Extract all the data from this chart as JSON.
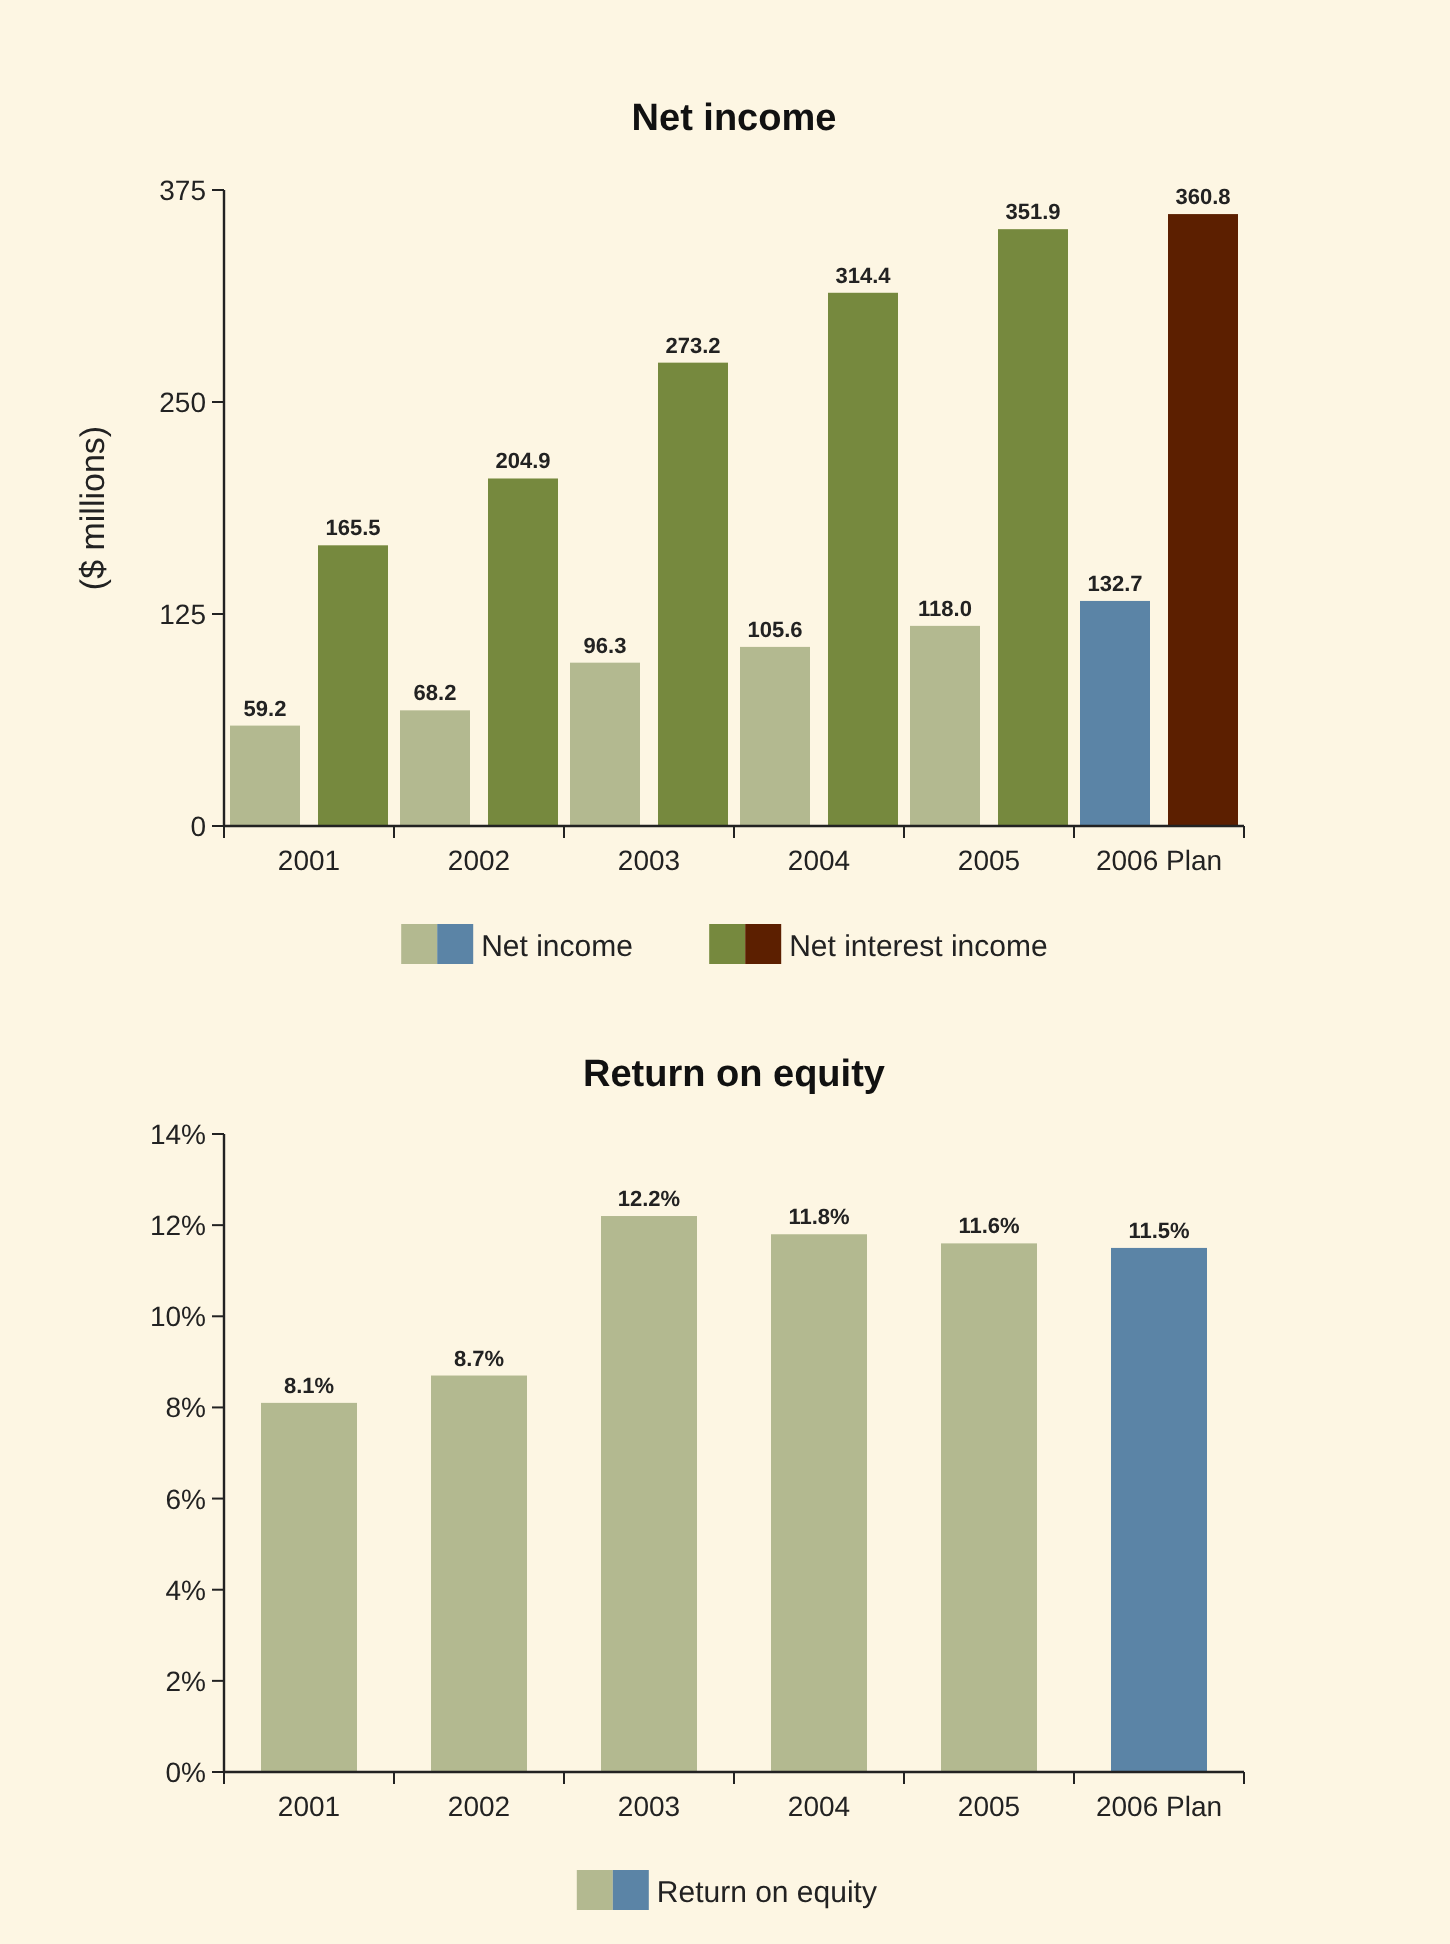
{
  "chart_data": [
    {
      "type": "bar",
      "title": "Net income",
      "ylabel": "($ millions)",
      "categories": [
        "2001",
        "2002",
        "2003",
        "2004",
        "2005",
        "2006 Plan"
      ],
      "ylim": [
        0,
        375
      ],
      "yticks": [
        0,
        125,
        250,
        375
      ],
      "grid": false,
      "legend": "bottom",
      "series": [
        {
          "name": "Net income",
          "colors": [
            "#b3b990",
            "#b3b990",
            "#b3b990",
            "#b3b990",
            "#b3b990",
            "#5b84a6"
          ],
          "values": [
            59.2,
            68.2,
            96.3,
            105.6,
            118.0,
            132.7
          ],
          "value_labels": [
            "59.2",
            "68.2",
            "96.3",
            "105.6",
            "118.0",
            "132.7"
          ]
        },
        {
          "name": "Net interest income",
          "colors": [
            "#76893e",
            "#76893e",
            "#76893e",
            "#76893e",
            "#76893e",
            "#5c1f00"
          ],
          "values": [
            165.5,
            204.9,
            273.2,
            314.4,
            351.9,
            360.8
          ],
          "value_labels": [
            "165.5",
            "204.9",
            "273.2",
            "314.4",
            "351.9",
            "360.8"
          ]
        }
      ]
    },
    {
      "type": "bar",
      "title": "Return on equity",
      "categories": [
        "2001",
        "2002",
        "2003",
        "2004",
        "2005",
        "2006 Plan"
      ],
      "ylim": [
        0,
        14
      ],
      "yticks": [
        {
          "value": 0,
          "label": "0%"
        },
        {
          "value": 2,
          "label": "2%"
        },
        {
          "value": 4,
          "label": "4%"
        },
        {
          "value": 6,
          "label": "6%"
        },
        {
          "value": 8,
          "label": "8%"
        },
        {
          "value": 10,
          "label": "10%"
        },
        {
          "value": 12,
          "label": "12%"
        },
        {
          "value": 14,
          "label": "14%"
        }
      ],
      "grid": false,
      "legend": "bottom",
      "series": [
        {
          "name": "Return on equity",
          "colors": [
            "#b3b990",
            "#b3b990",
            "#b3b990",
            "#b3b990",
            "#b3b990",
            "#5b84a6"
          ],
          "values": [
            8.1,
            8.7,
            12.2,
            11.8,
            11.6,
            11.5
          ],
          "value_labels": [
            "8.1%",
            "8.7%",
            "12.2%",
            "11.8%",
            "11.6%",
            "11.5%"
          ]
        }
      ]
    }
  ]
}
